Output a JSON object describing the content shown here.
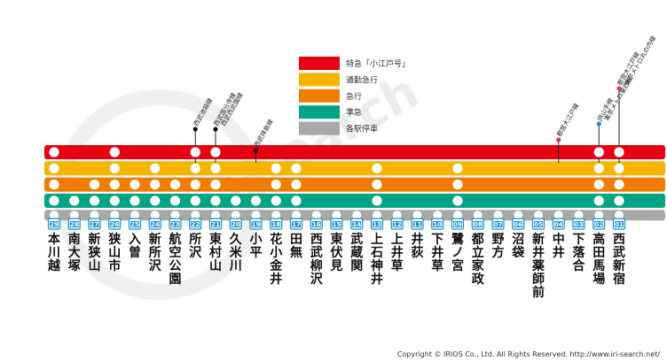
{
  "legend": [
    {
      "label": "特急「小江戸号」",
      "color": "#e60012"
    },
    {
      "label": "通勤急行",
      "color": "#f5b400"
    },
    {
      "label": "急行",
      "color": "#ee7d00"
    },
    {
      "label": "準急",
      "color": "#00a383"
    },
    {
      "label": "各駅停車",
      "color": "#a8a8a8"
    }
  ],
  "watermark": "i-search",
  "stations": [
    {
      "code": "29",
      "name": "本川越",
      "stops": [
        true,
        true,
        true,
        true,
        true
      ]
    },
    {
      "code": "28",
      "name": "南大塚",
      "stops": [
        false,
        false,
        false,
        true,
        true
      ]
    },
    {
      "code": "27",
      "name": "新狭山",
      "stops": [
        false,
        false,
        true,
        true,
        true
      ]
    },
    {
      "code": "26",
      "name": "狭山市",
      "stops": [
        true,
        true,
        true,
        true,
        true
      ]
    },
    {
      "code": "25",
      "name": "入曽",
      "stops": [
        false,
        false,
        true,
        true,
        true
      ]
    },
    {
      "code": "24",
      "name": "新所沢",
      "stops": [
        false,
        true,
        true,
        true,
        true
      ]
    },
    {
      "code": "23",
      "name": "航空公園",
      "stops": [
        false,
        false,
        true,
        true,
        true
      ]
    },
    {
      "code": "22",
      "name": "所沢",
      "stops": [
        true,
        true,
        true,
        true,
        true
      ]
    },
    {
      "code": "21",
      "name": "東村山",
      "stops": [
        true,
        true,
        true,
        true,
        true
      ]
    },
    {
      "code": "20",
      "name": "久米川",
      "stops": [
        false,
        false,
        false,
        true,
        true
      ]
    },
    {
      "code": "19",
      "name": "小平",
      "stops": [
        false,
        false,
        false,
        true,
        true
      ]
    },
    {
      "code": "18",
      "name": "花小金井",
      "stops": [
        false,
        true,
        true,
        true,
        true
      ]
    },
    {
      "code": "17",
      "name": "田無",
      "stops": [
        false,
        true,
        true,
        true,
        true
      ]
    },
    {
      "code": "16",
      "name": "西武柳沢",
      "stops": [
        false,
        false,
        false,
        false,
        true
      ]
    },
    {
      "code": "15",
      "name": "東伏見",
      "stops": [
        false,
        false,
        false,
        false,
        true
      ]
    },
    {
      "code": "14",
      "name": "武蔵関",
      "stops": [
        false,
        false,
        false,
        false,
        true
      ]
    },
    {
      "code": "13",
      "name": "上石神井",
      "stops": [
        false,
        true,
        true,
        true,
        true
      ]
    },
    {
      "code": "12",
      "name": "上井草",
      "stops": [
        false,
        false,
        false,
        false,
        true
      ]
    },
    {
      "code": "11",
      "name": "井荻",
      "stops": [
        false,
        false,
        false,
        false,
        true
      ]
    },
    {
      "code": "10",
      "name": "下井草",
      "stops": [
        false,
        false,
        false,
        false,
        true
      ]
    },
    {
      "code": "09",
      "name": "鷺ノ宮",
      "stops": [
        false,
        true,
        true,
        true,
        true
      ]
    },
    {
      "code": "08",
      "name": "都立家政",
      "stops": [
        false,
        false,
        false,
        false,
        true
      ]
    },
    {
      "code": "07",
      "name": "野方",
      "stops": [
        false,
        false,
        false,
        false,
        true
      ]
    },
    {
      "code": "06",
      "name": "沼袋",
      "stops": [
        false,
        false,
        false,
        false,
        true
      ]
    },
    {
      "code": "05",
      "name": "新井薬師前",
      "stops": [
        false,
        false,
        false,
        false,
        true
      ]
    },
    {
      "code": "04",
      "name": "中井",
      "stops": [
        false,
        false,
        false,
        false,
        true
      ]
    },
    {
      "code": "03",
      "name": "下落合",
      "stops": [
        false,
        false,
        false,
        false,
        true
      ]
    },
    {
      "code": "02",
      "name": "高田馬場",
      "stops": [
        true,
        true,
        true,
        true,
        true
      ]
    },
    {
      "code": "01",
      "name": "西武新宿",
      "stops": [
        true,
        true,
        true,
        true,
        true
      ]
    }
  ],
  "transfers": [
    {
      "station_code": "22",
      "dot_color": "#111111",
      "lines": [
        "西武池袋線"
      ]
    },
    {
      "station_code": "21",
      "dot_color": "#111111",
      "lines": [
        "西武国分寺線",
        "西武西武園線"
      ]
    },
    {
      "station_code": "19",
      "dot_color": "#111111",
      "lines": [
        "西武拝島線"
      ]
    },
    {
      "station_code": "04",
      "dot_color": "#d6336c",
      "lines": [
        "都営大江戸線"
      ]
    },
    {
      "station_code": "02",
      "dot_color": "#1e90d6",
      "lines": [
        "JR山手線",
        "東京メトロ東西線"
      ]
    },
    {
      "station_code": "01",
      "dot_color": "#d6336c",
      "lines": [
        "都営大江戸線",
        "東京メトロ丸の内線"
      ]
    }
  ],
  "copyright": "Copyright © IRIOS Co., Ltd. All Rights Reserved.  http://www.iri-search.net/"
}
